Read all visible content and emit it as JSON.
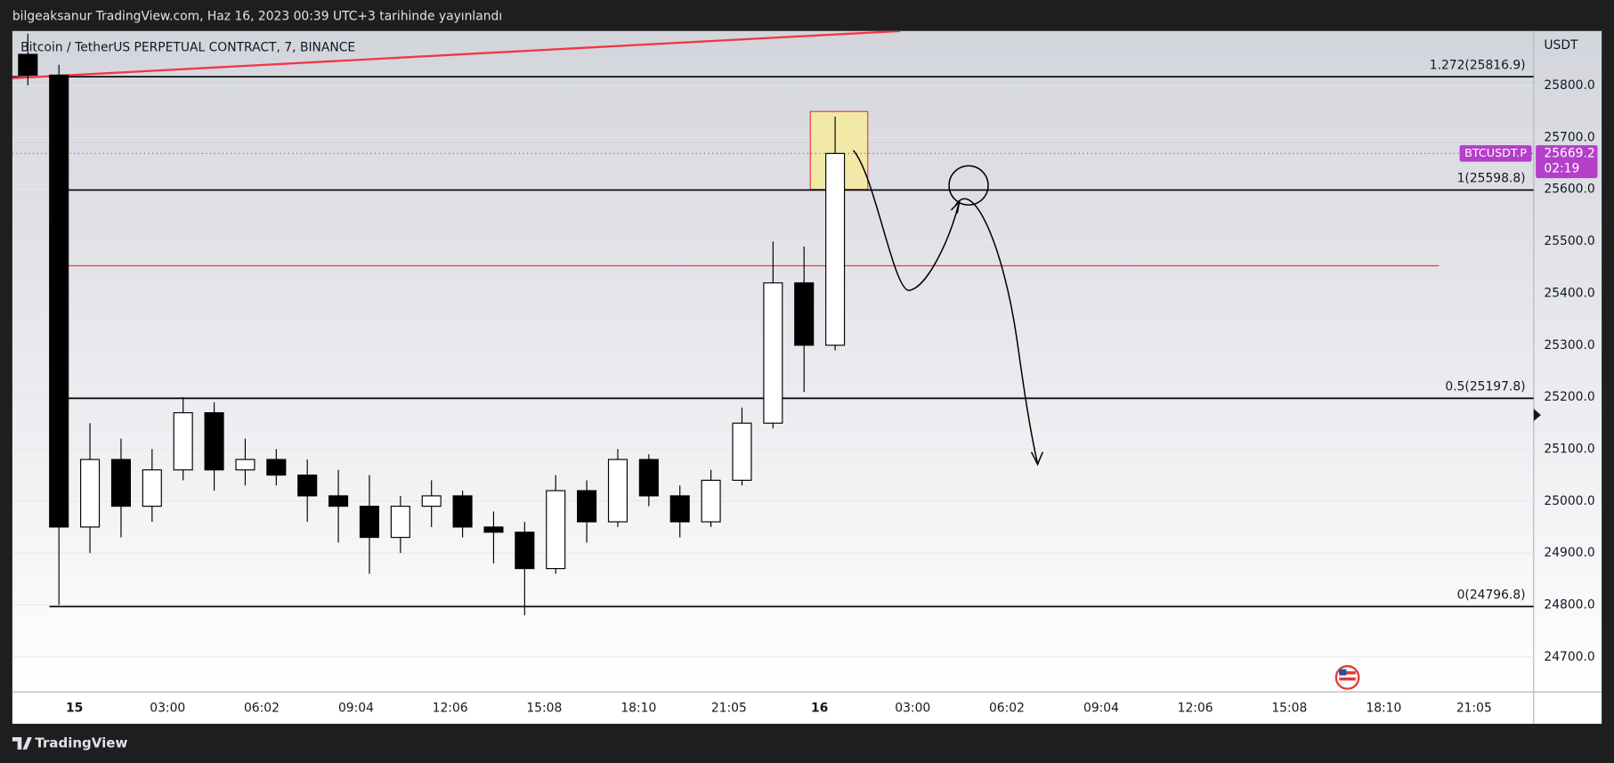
{
  "header_text": "bilgeaksanur TradingView.com, Haz 16, 2023 00:39 UTC+3 tarihinde yayınlandı",
  "footer_brand": "TradingView",
  "chart_data": {
    "type": "candlestick",
    "title": "Bitcoin / TetherUS PERPETUAL CONTRACT, 7, BINANCE",
    "y_axis_label": "USDT",
    "xlim": [
      -2,
      47
    ],
    "ylim": [
      24632.6,
      25905
    ],
    "grid": true,
    "xticks": [
      {
        "value": 0,
        "label": "15"
      },
      {
        "value": 3,
        "label": "03:00"
      },
      {
        "value": 6.03,
        "label": "06:02"
      },
      {
        "value": 9.07,
        "label": "09:04"
      },
      {
        "value": 12.1,
        "label": "12:06"
      },
      {
        "value": 15.13,
        "label": "15:08"
      },
      {
        "value": 18.17,
        "label": "18:10"
      },
      {
        "value": 21.08,
        "label": "21:05"
      },
      {
        "value": 24,
        "label": "16"
      },
      {
        "value": 27,
        "label": "03:00"
      },
      {
        "value": 30.03,
        "label": "06:02"
      },
      {
        "value": 33.07,
        "label": "09:04"
      },
      {
        "value": 36.1,
        "label": "12:06"
      },
      {
        "value": 39.13,
        "label": "15:08"
      },
      {
        "value": 42.17,
        "label": "18:10"
      },
      {
        "value": 45.08,
        "label": "21:05"
      }
    ],
    "yticks": [
      {
        "value": 24700,
        "label": "24700.0"
      },
      {
        "value": 24800,
        "label": "24800.0"
      },
      {
        "value": 24900,
        "label": "24900.0"
      },
      {
        "value": 25000,
        "label": "25000.0"
      },
      {
        "value": 25100,
        "label": "25100.0"
      },
      {
        "value": 25200,
        "label": "25200.0"
      },
      {
        "value": 25300,
        "label": "25300.0"
      },
      {
        "value": 25400,
        "label": "25400.0"
      },
      {
        "value": 25500,
        "label": "25500.0"
      },
      {
        "value": 25600,
        "label": "25600.0"
      },
      {
        "value": 25700,
        "label": "25700.0"
      },
      {
        "value": 25800,
        "label": "25800.0"
      }
    ],
    "x": [
      -1.5,
      -0.5,
      0.5,
      1.5,
      2.5,
      3.5,
      4.5,
      5.5,
      6.5,
      7.5,
      8.5,
      9.5,
      10.5,
      11.5,
      12.5,
      13.5,
      14.5,
      15.5,
      16.5,
      17.5,
      18.5,
      19.5,
      20.5,
      21.5,
      22.5,
      23.5,
      24.5
    ],
    "open": [
      25860,
      25820,
      24950,
      25080,
      24990,
      25060,
      25170,
      25060,
      25080,
      25050,
      25010,
      24990,
      24930,
      24990,
      25010,
      24950,
      24940,
      24870,
      25020,
      24960,
      25080,
      25010,
      24960,
      25040,
      25150,
      25420,
      25300
    ],
    "high": [
      25900,
      25840,
      25150,
      25120,
      25100,
      25200,
      25190,
      25120,
      25100,
      25080,
      25060,
      25050,
      25010,
      25040,
      25020,
      24980,
      24960,
      25050,
      25040,
      25100,
      25090,
      25030,
      25060,
      25180,
      25500,
      25490,
      25740
    ],
    "low": [
      25800,
      24800,
      24900,
      24930,
      24960,
      25040,
      25020,
      25030,
      25030,
      24960,
      24920,
      24860,
      24900,
      24950,
      24930,
      24880,
      24780,
      24860,
      24920,
      24950,
      24990,
      24930,
      24950,
      25030,
      25140,
      25210,
      25290
    ],
    "close": [
      25820,
      24950,
      25080,
      24990,
      25060,
      25170,
      25060,
      25080,
      25050,
      25010,
      24990,
      24930,
      24990,
      25010,
      24950,
      24940,
      24870,
      25020,
      24960,
      25080,
      25010,
      24960,
      25040,
      25150,
      25420,
      25300,
      25669.2
    ],
    "up_color": "#ffffff",
    "down_color": "#000000",
    "levels": [
      {
        "value": 25816.9,
        "label": "1.272(25816.9)"
      },
      {
        "value": 25598.8,
        "label": "1(25598.8)"
      },
      {
        "value": 25197.8,
        "label": "0.5(25197.8)"
      },
      {
        "value": 24796.8,
        "label": "0(24796.8)"
      }
    ],
    "ref_line": {
      "value": 25453,
      "color": "#f23645"
    },
    "trend_line": {
      "x": [
        -2,
        26.6
      ],
      "y": [
        25814,
        25905
      ],
      "color": "#f23645"
    },
    "highlight": {
      "x": [
        23.7,
        25.55
      ],
      "y": [
        25600,
        25750
      ],
      "color": "#f5eb9a"
    },
    "last_price": 25669.2,
    "symbol_tag": "BTCUSDT.P",
    "countdown": "02:19",
    "tag_color": "#b43fc8"
  }
}
